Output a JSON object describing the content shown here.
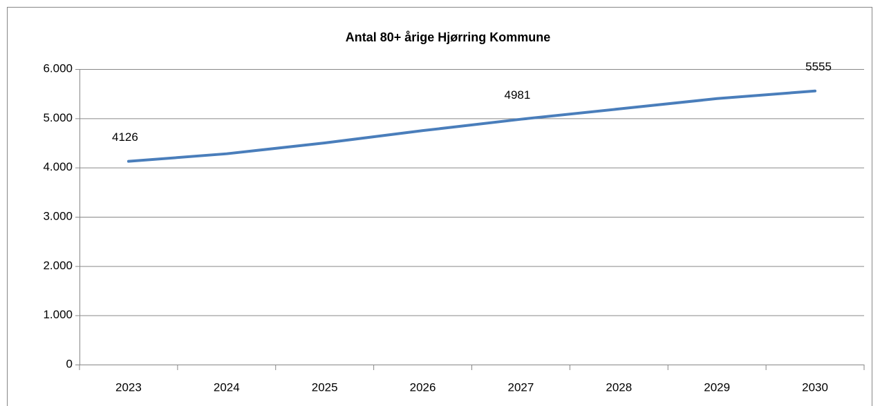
{
  "chart_data": {
    "type": "line",
    "title": "Antal 80+ årige Hjørring Kommune",
    "categories": [
      "2023",
      "2024",
      "2025",
      "2026",
      "2027",
      "2028",
      "2029",
      "2030"
    ],
    "series": [
      {
        "name": "Antal 80+ årige",
        "color": "#4a7ebb",
        "values": [
          4126,
          4280,
          4500,
          4750,
          4981,
          5190,
          5400,
          5555
        ]
      }
    ],
    "value_labels": [
      "4126",
      null,
      null,
      null,
      "4981",
      null,
      null,
      "5555"
    ],
    "ylim": [
      0,
      6000
    ],
    "yticks": [
      0,
      {
        "value": 1000,
        "label": "1.000"
      },
      {
        "value": 2000,
        "label": "2.000"
      },
      {
        "value": 3000,
        "label": "3.000"
      },
      {
        "value": 4000,
        "label": "4.000"
      },
      {
        "value": 5000,
        "label": "5.000"
      },
      {
        "value": 6000,
        "label": "6.000"
      }
    ],
    "grid": true
  }
}
